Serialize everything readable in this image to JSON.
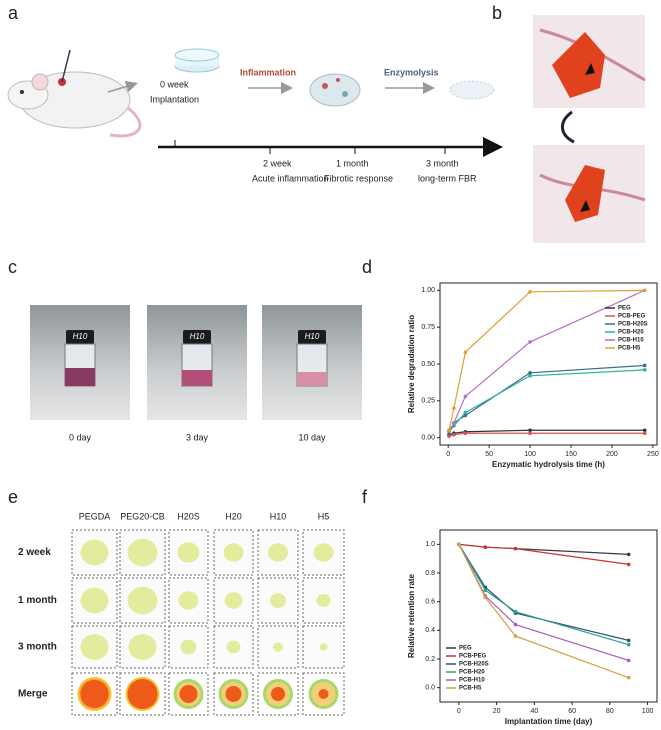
{
  "panels": {
    "labels": [
      "a",
      "b",
      "c",
      "d",
      "e",
      "f"
    ]
  },
  "schematic": {
    "stage1": "Inflammation",
    "stage2": "Enzymolysis",
    "start_time": "0 week",
    "start_event": "Implantation",
    "timeline": [
      {
        "time": "2 week",
        "event": "Acute inflammation"
      },
      {
        "time": "1 month",
        "event": "Fibrotic response"
      },
      {
        "time": "3 month",
        "event": "long-term FBR"
      }
    ]
  },
  "photos": [
    {
      "cap": "H10",
      "label": "0 day"
    },
    {
      "cap": "H10",
      "label": "3 day"
    },
    {
      "cap": "H10",
      "label": "10 day"
    }
  ],
  "imaging": {
    "columns": [
      "PEGDA",
      "PEG20-CB",
      "H20S",
      "H20",
      "H10",
      "H5"
    ],
    "rows": [
      "2 week",
      "1 month",
      "3 month",
      "Merge"
    ]
  },
  "chart_data": [
    {
      "type": "line",
      "xlabel": "Enzymatic hydrolysis time (h)",
      "ylabel": "Relative degradation ratio",
      "x": [
        1,
        7,
        21,
        100,
        240
      ],
      "xlim": [
        -10,
        255
      ],
      "xticks": [
        0,
        50,
        100,
        150,
        200,
        250
      ],
      "ylim": [
        -0.05,
        1.05
      ],
      "yticks": [
        {
          "value": 0,
          "label": "0.00"
        },
        {
          "value": 0.25,
          "label": "0.25"
        },
        {
          "value": 0.5,
          "label": "0.50"
        },
        {
          "value": 0.75,
          "label": "0.75"
        },
        {
          "value": 1,
          "label": "1.00"
        }
      ],
      "legend": "top-right",
      "series": [
        {
          "name": "PEG",
          "color": "#333333",
          "marker": "square",
          "values": [
            0.02,
            0.03,
            0.04,
            0.05,
            0.05
          ]
        },
        {
          "name": "PCB-PEG",
          "color": "#d9534f",
          "marker": "circle",
          "values": [
            0.01,
            0.02,
            0.03,
            0.03,
            0.03
          ]
        },
        {
          "name": "PCB-H20S",
          "color": "#3a6e8f",
          "marker": "triangle",
          "values": [
            0.04,
            0.1,
            0.15,
            0.44,
            0.49
          ]
        },
        {
          "name": "PCB-H20",
          "color": "#2bb39a",
          "marker": "triangle",
          "values": [
            0.04,
            0.08,
            0.17,
            0.42,
            0.46
          ]
        },
        {
          "name": "PCB-H10",
          "color": "#b86fc8",
          "marker": "diamond",
          "values": [
            0.05,
            0.1,
            0.28,
            0.65,
            1.0
          ]
        },
        {
          "name": "PCB-H5",
          "color": "#e0a030",
          "marker": "triangle",
          "values": [
            0.05,
            0.2,
            0.58,
            0.99,
            1.0
          ]
        }
      ]
    },
    {
      "type": "line",
      "xlabel": "Implantation time (day)",
      "ylabel": "Relative retention rate",
      "x": [
        0,
        14,
        30,
        90
      ],
      "xlim": [
        -10,
        105
      ],
      "xticks": [
        0,
        20,
        40,
        60,
        80,
        100
      ],
      "ylim": [
        -0.1,
        1.1
      ],
      "yticks": [
        {
          "value": 0,
          "label": "0.0"
        },
        0.2,
        0.4,
        0.6,
        0.8,
        {
          "value": 1,
          "label": "1.0"
        }
      ],
      "legend": "bottom-left",
      "series": [
        {
          "name": "PEG",
          "color": "#3a3a4a",
          "values": [
            1,
            0.98,
            0.97,
            0.93
          ]
        },
        {
          "name": "PCB-PEG",
          "color": "#cc3333",
          "values": [
            1,
            0.98,
            0.97,
            0.86
          ]
        },
        {
          "name": "PCB-H20S",
          "color": "#2b4f7a",
          "values": [
            1,
            0.7,
            0.52,
            0.33
          ]
        },
        {
          "name": "PCB-H20",
          "color": "#2aa58a",
          "values": [
            1,
            0.68,
            0.53,
            0.3
          ]
        },
        {
          "name": "PCB-H10",
          "color": "#a060b8",
          "values": [
            1,
            0.64,
            0.44,
            0.19
          ]
        },
        {
          "name": "PCB-H5",
          "color": "#d4a040",
          "values": [
            1,
            0.63,
            0.36,
            0.07
          ]
        }
      ]
    }
  ]
}
